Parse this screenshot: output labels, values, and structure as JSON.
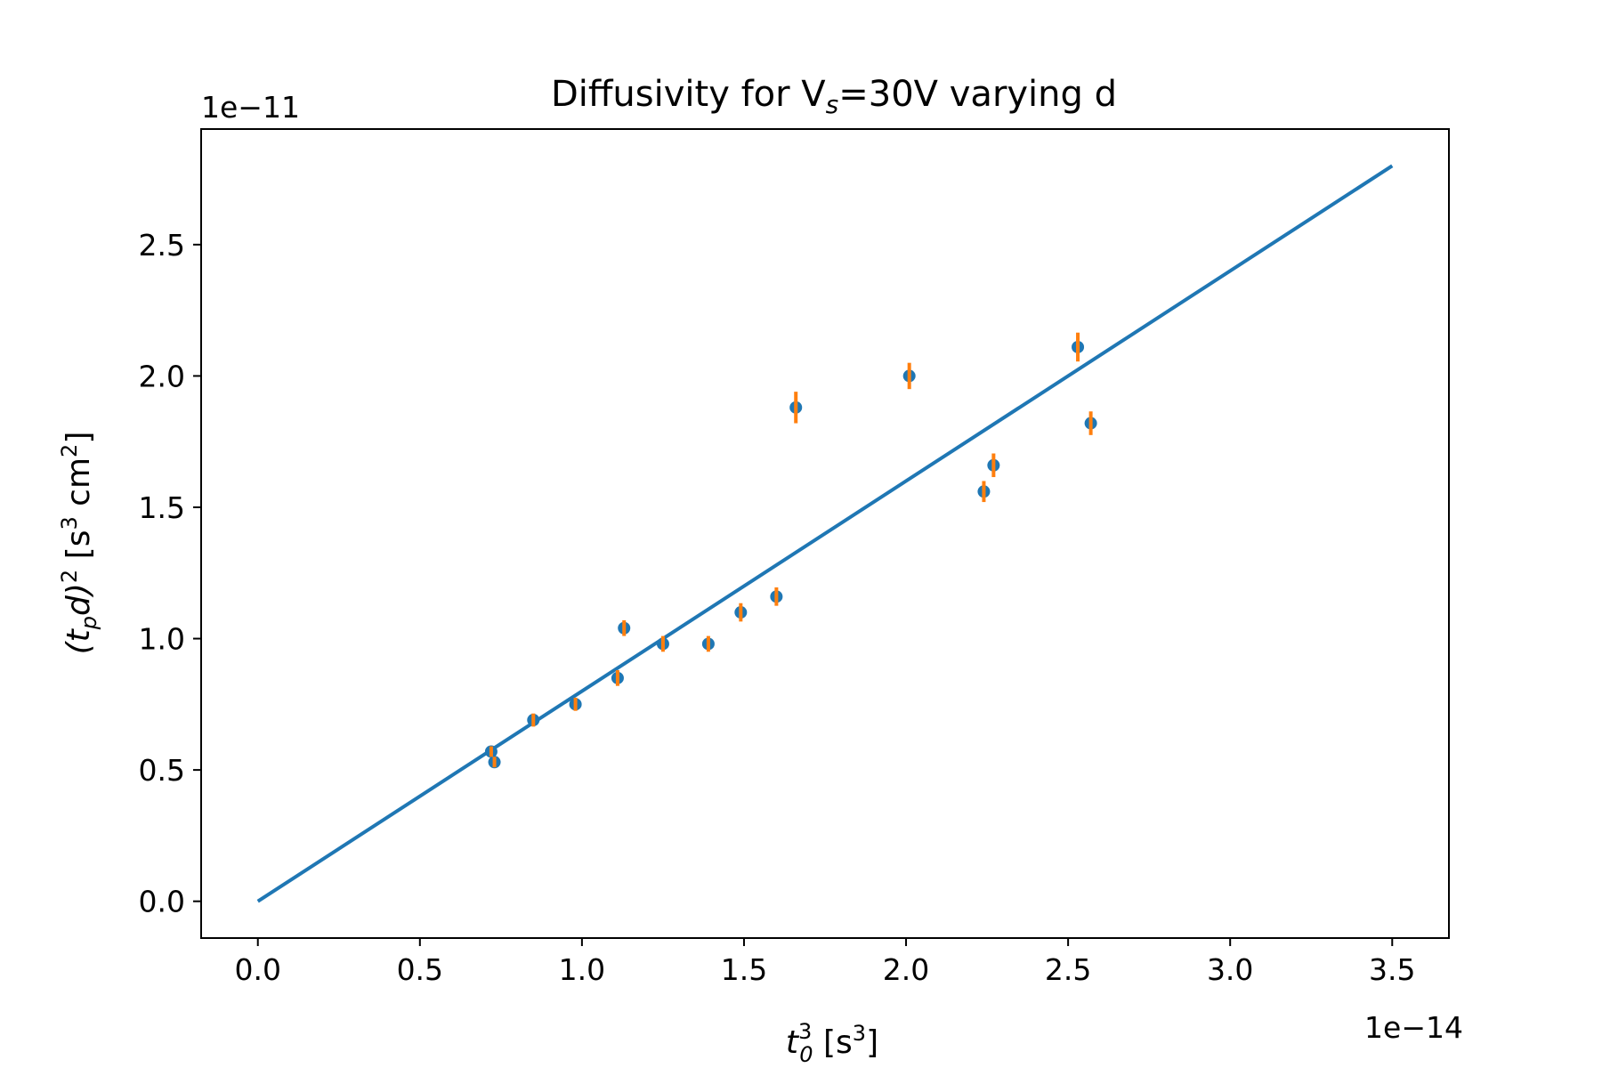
{
  "chart_data": {
    "type": "scatter",
    "title": {
      "pre": "Diffusivity for V",
      "sub": "s",
      "post": "=30V varying d"
    },
    "xlabel": {
      "base": "t",
      "sub": "0",
      "sup": "3",
      "unit_pre": " [s",
      "unit_sup": "3",
      "unit_post": "]"
    },
    "ylabel": {
      "open": "(t",
      "sub": "p",
      "mid": "d)",
      "sup": "2",
      "unit_pre": " [s",
      "unit_sup1": "3",
      "unit_mid": " cm",
      "unit_sup2": "2",
      "unit_post": "]"
    },
    "x_offset_label": "1e−14",
    "y_offset_label": "1e−11",
    "xlim": [
      -0.175,
      3.675
    ],
    "ylim": [
      -0.14,
      2.94
    ],
    "x_ticks": [
      0.0,
      0.5,
      1.0,
      1.5,
      2.0,
      2.5,
      3.0,
      3.5
    ],
    "x_tick_labels": [
      "0.0",
      "0.5",
      "1.0",
      "1.5",
      "2.0",
      "2.5",
      "3.0",
      "3.5"
    ],
    "y_ticks": [
      0.0,
      0.5,
      1.0,
      1.5,
      2.0,
      2.5
    ],
    "y_tick_labels": [
      "0.0",
      "0.5",
      "1.0",
      "1.5",
      "2.0",
      "2.5"
    ],
    "grid": false,
    "fit_line": {
      "x": [
        0.0,
        3.5
      ],
      "y": [
        0.0,
        2.8
      ],
      "color": "#1f77b4"
    },
    "points": {
      "color": "#1f77b4",
      "errorbar_color": "#ff7f0e",
      "x": [
        0.72,
        0.73,
        0.85,
        0.98,
        1.11,
        1.13,
        1.25,
        1.39,
        1.49,
        1.6,
        1.66,
        2.01,
        2.24,
        2.27,
        2.53,
        2.57
      ],
      "y": [
        0.57,
        0.53,
        0.69,
        0.75,
        0.85,
        1.04,
        0.98,
        0.98,
        1.1,
        1.16,
        1.88,
        2.0,
        1.56,
        1.66,
        2.11,
        1.82
      ],
      "yerr": [
        0.02,
        0.02,
        0.025,
        0.025,
        0.03,
        0.03,
        0.03,
        0.03,
        0.035,
        0.035,
        0.06,
        0.05,
        0.04,
        0.045,
        0.055,
        0.045
      ]
    }
  }
}
